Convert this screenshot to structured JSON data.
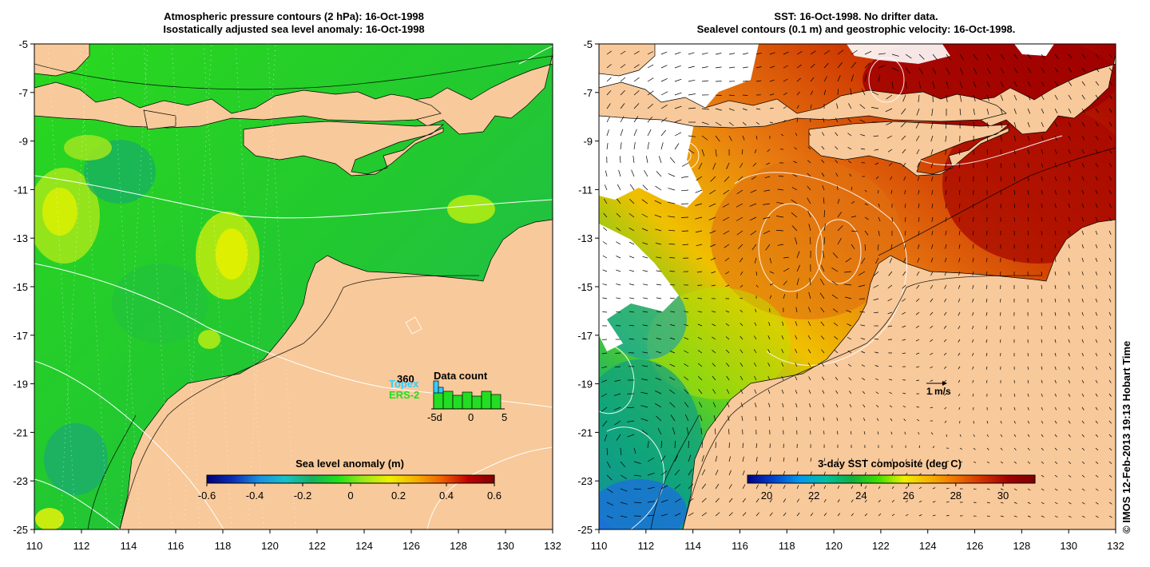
{
  "left_panel": {
    "title_line1": "Atmospheric pressure contours (2 hPa): 16-Oct-1998",
    "title_line2": "Isostatically adjusted sea level anomaly: 16-Oct-1998",
    "colorbar_label": "Sea level anomaly (m)",
    "colorbar_ticks": [
      "-0.6",
      "-0.4",
      "-0.2",
      "0",
      "0.2",
      "0.4",
      "0.6"
    ],
    "inset": {
      "title": "Data count",
      "max_label": "360",
      "legend": [
        {
          "name": "Topex",
          "color": "#33ccff"
        },
        {
          "name": "ERS-2",
          "color": "#22dd22"
        }
      ],
      "axis_ticks": [
        "-5d",
        "0",
        "5"
      ]
    }
  },
  "right_panel": {
    "title_line1": "SST: 16-Oct-1998. No drifter data.",
    "title_line2": "Sealevel contours (0.1 m) and geostrophic velocity: 16-Oct-1998.",
    "colorbar_label": "3-day SST composite (deg C)",
    "colorbar_ticks": [
      "20",
      "22",
      "24",
      "26",
      "28",
      "30"
    ],
    "velocity_key": "1 m/s"
  },
  "axes": {
    "lon_ticks": [
      "110",
      "112",
      "114",
      "116",
      "118",
      "120",
      "122",
      "124",
      "126",
      "128",
      "130",
      "132"
    ],
    "lat_ticks": [
      "-5",
      "-7",
      "-9",
      "-11",
      "-13",
      "-15",
      "-17",
      "-19",
      "-21",
      "-23",
      "-25"
    ]
  },
  "credit": "© IMOS 12-Feb-2013 19:13 Hobart Time",
  "colors": {
    "land": "#f8c99a",
    "sla_ramp": [
      "#00007a",
      "#0a2fb5",
      "#1a8fe0",
      "#18c0c8",
      "#18b060",
      "#1ee01a",
      "#9ee81a",
      "#f0f000",
      "#f8b000",
      "#f06000",
      "#c00000",
      "#800000"
    ],
    "sst_ramp": [
      "#000088",
      "#0044cc",
      "#0099ee",
      "#00c0a0",
      "#10b040",
      "#40e000",
      "#f0f000",
      "#f8b000",
      "#ef7000",
      "#d03000",
      "#a00000",
      "#800000"
    ]
  }
}
